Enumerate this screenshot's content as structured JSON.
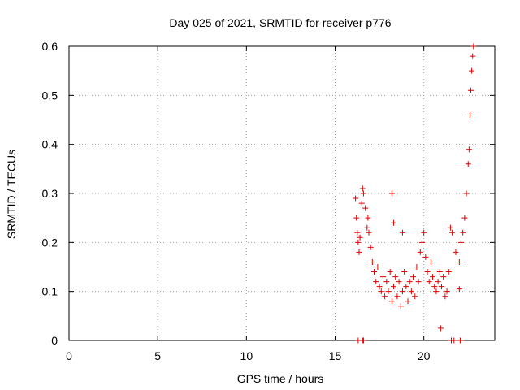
{
  "chart_data": {
    "type": "scatter",
    "title": "Day 025 of 2021, SRMTID for receiver p776",
    "xlabel": "GPS time / hours",
    "ylabel": "SRMTID / TECUs",
    "xlim": [
      0,
      24
    ],
    "ylim": [
      0,
      0.6
    ],
    "xticks": [
      0,
      5,
      10,
      15,
      20
    ],
    "xtick_labels": [
      "0",
      "5",
      "10",
      "15",
      "20"
    ],
    "yticks": [
      0,
      0.1,
      0.2,
      0.3,
      0.4,
      0.5,
      0.6
    ],
    "ytick_labels": [
      "0",
      "0.1",
      "0.2",
      "0.3",
      "0.4",
      "0.5",
      "0.6"
    ],
    "grid": true,
    "marker": "plus",
    "colors": {
      "series": "#e00000",
      "grid": "#a0a0a0",
      "axis": "#000000"
    },
    "series": [
      {
        "name": "",
        "x": [
          16.15,
          16.2,
          16.25,
          16.3,
          16.35,
          16.4,
          16.5,
          16.55,
          16.6,
          16.7,
          16.8,
          16.85,
          16.9,
          17.0,
          17.1,
          17.2,
          17.3,
          17.4,
          17.5,
          17.6,
          17.7,
          17.8,
          17.9,
          18.0,
          18.1,
          18.2,
          18.3,
          18.4,
          18.5,
          18.6,
          18.7,
          18.8,
          18.9,
          19.0,
          19.1,
          19.2,
          19.3,
          19.4,
          19.5,
          19.6,
          19.7,
          19.8,
          19.9,
          20.0,
          20.1,
          20.2,
          20.3,
          20.4,
          20.5,
          20.6,
          20.7,
          20.8,
          20.9,
          21.0,
          21.1,
          21.2,
          21.3,
          21.4,
          21.5,
          21.6,
          21.8,
          22.0,
          22.1,
          22.2,
          22.3,
          22.4,
          22.5,
          22.55,
          22.6,
          22.65,
          22.7,
          22.75,
          22.8
        ],
        "y": [
          0.29,
          0.25,
          0.22,
          0.2,
          0.18,
          0.21,
          0.28,
          0.31,
          0.3,
          0.27,
          0.23,
          0.25,
          0.22,
          0.19,
          0.16,
          0.14,
          0.12,
          0.15,
          0.11,
          0.1,
          0.13,
          0.09,
          0.12,
          0.1,
          0.14,
          0.08,
          0.11,
          0.13,
          0.09,
          0.12,
          0.07,
          0.1,
          0.14,
          0.11,
          0.08,
          0.12,
          0.1,
          0.13,
          0.09,
          0.15,
          0.12,
          0.18,
          0.2,
          0.22,
          0.17,
          0.14,
          0.12,
          0.16,
          0.13,
          0.11,
          0.1,
          0.12,
          0.14,
          0.11,
          0.13,
          0.09,
          0.1,
          0.14,
          0.23,
          0.22,
          0.18,
          0.16,
          0.2,
          0.22,
          0.25,
          0.3,
          0.36,
          0.39,
          0.46,
          0.51,
          0.55,
          0.58,
          0.6
        ]
      },
      {
        "name": "",
        "x": [
          16.3,
          16.55,
          16.6,
          21.55,
          21.7,
          22.05,
          22.1
        ],
        "y": [
          0,
          0,
          0,
          0,
          0,
          0,
          0
        ]
      },
      {
        "name": "",
        "x": [
          18.2,
          18.3,
          18.8,
          20.95,
          22.0
        ],
        "y": [
          0.3,
          0.24,
          0.22,
          0.025,
          0.105
        ]
      }
    ]
  }
}
